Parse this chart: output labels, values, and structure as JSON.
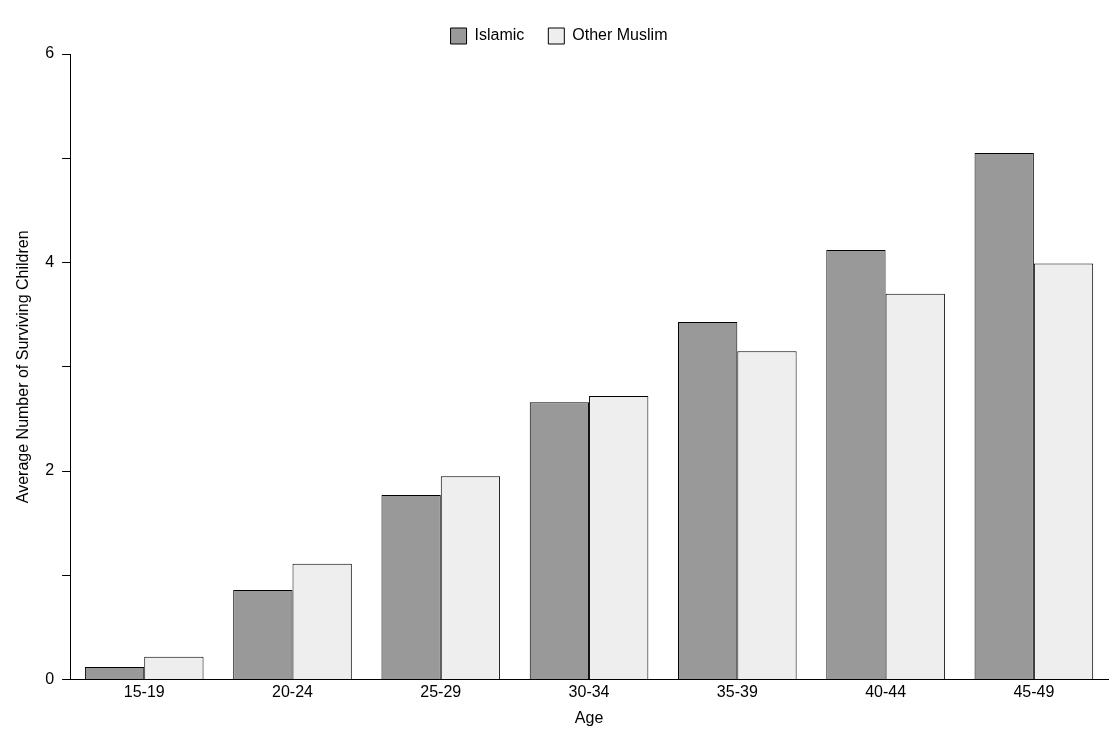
{
  "chart_data": {
    "type": "bar",
    "xlabel": "Age",
    "ylabel": "Average Number of Surviving Children",
    "categories": [
      "15-19",
      "20-24",
      "25-29",
      "30-34",
      "35-39",
      "40-44",
      "45-49"
    ],
    "series": [
      {
        "name": "Islamic",
        "color": "#999999",
        "values": [
          0.12,
          0.86,
          1.77,
          2.66,
          3.43,
          4.12,
          5.05
        ]
      },
      {
        "name": "Other Muslim",
        "color": "#eeeeee",
        "values": [
          0.22,
          1.11,
          1.95,
          2.72,
          3.15,
          3.7,
          3.99
        ]
      }
    ],
    "ylim": [
      0,
      6
    ],
    "yticks": [
      0,
      {
        "value": 1,
        "label": null
      },
      2,
      {
        "value": 3,
        "label": null
      },
      4,
      {
        "value": 5,
        "label": null
      },
      6
    ],
    "grid": false,
    "legend": "top"
  }
}
